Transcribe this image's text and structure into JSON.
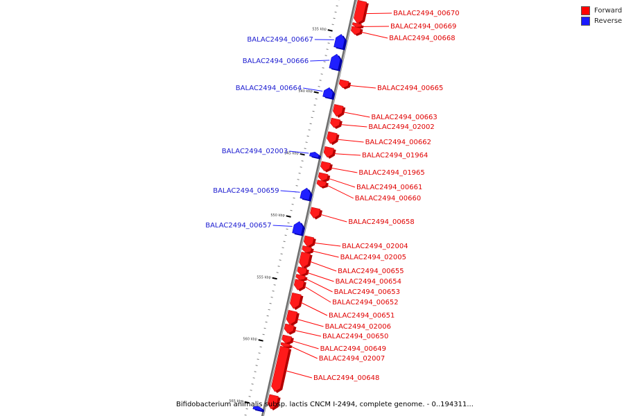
{
  "legend": [
    {
      "label": "Forward",
      "color": "#ff0000"
    },
    {
      "label": "Reverse",
      "color": "#1a1aff"
    }
  ],
  "caption": "Bifidobacterium animalis subsp. lactis CNCM I-2494, complete genome. - 0..194311...",
  "ticks": [
    {
      "label": "535 kbp",
      "pos": 535
    },
    {
      "label": "540 kbp",
      "pos": 540
    },
    {
      "label": "545 kbp",
      "pos": 545
    },
    {
      "label": "550 kbp",
      "pos": 550
    },
    {
      "label": "555 kbp",
      "pos": 555
    },
    {
      "label": "560 kbp",
      "pos": 560
    },
    {
      "label": "565 kbp",
      "pos": 565
    }
  ],
  "features": [
    {
      "name": "BALAC2494_00670",
      "strand": "forward",
      "start": 532.2,
      "end": 534.0
    },
    {
      "name": "BALAC2494_00669",
      "strand": "forward",
      "start": 534.0,
      "end": 534.3
    },
    {
      "name": "BALAC2494_00668",
      "strand": "forward",
      "start": 534.3,
      "end": 534.9
    },
    {
      "name": "BALAC2494_00667",
      "strand": "reverse",
      "start": 535.1,
      "end": 536.2
    },
    {
      "name": "BALAC2494_00666",
      "strand": "reverse",
      "start": 536.7,
      "end": 537.9
    },
    {
      "name": "BALAC2494_00665",
      "strand": "forward",
      "start": 538.6,
      "end": 539.2
    },
    {
      "name": "BALAC2494_00664",
      "strand": "reverse",
      "start": 539.4,
      "end": 540.2
    },
    {
      "name": "BALAC2494_00663",
      "strand": "forward",
      "start": 540.6,
      "end": 541.5
    },
    {
      "name": "BALAC2494_02002",
      "strand": "forward",
      "start": 541.7,
      "end": 542.4
    },
    {
      "name": "BALAC2494_00662",
      "strand": "forward",
      "start": 542.8,
      "end": 543.7
    },
    {
      "name": "BALAC2494_02003",
      "strand": "reverse",
      "start": 544.6,
      "end": 545.0
    },
    {
      "name": "BALAC2494_01964",
      "strand": "forward",
      "start": 544.0,
      "end": 544.8
    },
    {
      "name": "BALAC2494_01965",
      "strand": "forward",
      "start": 545.2,
      "end": 545.9
    },
    {
      "name": "BALAC2494_00661",
      "strand": "forward",
      "start": 546.1,
      "end": 546.7
    },
    {
      "name": "BALAC2494_00660",
      "strand": "forward",
      "start": 546.7,
      "end": 547.2
    },
    {
      "name": "BALAC2494_00659",
      "strand": "reverse",
      "start": 547.5,
      "end": 548.4
    },
    {
      "name": "BALAC2494_00658",
      "strand": "forward",
      "start": 548.9,
      "end": 549.7
    },
    {
      "name": "BALAC2494_00657",
      "strand": "reverse",
      "start": 550.2,
      "end": 551.2
    },
    {
      "name": "BALAC2494_02004",
      "strand": "forward",
      "start": 551.2,
      "end": 552.0
    },
    {
      "name": "BALAC2494_02005",
      "strand": "forward",
      "start": 552.0,
      "end": 552.5
    },
    {
      "name": "BALAC2494_00655",
      "strand": "forward",
      "start": 552.5,
      "end": 553.7
    },
    {
      "name": "BALAC2494_00654",
      "strand": "forward",
      "start": 553.7,
      "end": 554.3
    },
    {
      "name": "BALAC2494_00653",
      "strand": "forward",
      "start": 554.3,
      "end": 554.7
    },
    {
      "name": "BALAC2494_00652",
      "strand": "forward",
      "start": 554.7,
      "end": 555.5
    },
    {
      "name": "BALAC2494_00651",
      "strand": "forward",
      "start": 555.8,
      "end": 557.0
    },
    {
      "name": "BALAC2494_02006",
      "strand": "forward",
      "start": 557.2,
      "end": 558.3
    },
    {
      "name": "BALAC2494_00650",
      "strand": "forward",
      "start": 558.3,
      "end": 559.0
    },
    {
      "name": "BALAC2494_00649",
      "strand": "forward",
      "start": 559.2,
      "end": 559.8
    },
    {
      "name": "BALAC2494_02007",
      "strand": "forward",
      "start": 559.8,
      "end": 560.1
    },
    {
      "name": "BALAC2494_00648",
      "strand": "forward",
      "start": 560.1,
      "end": 563.7
    },
    {
      "name": "",
      "strand": "forward",
      "start": 564.0,
      "end": 565.1
    },
    {
      "name": "",
      "strand": "reverse",
      "start": 565.1,
      "end": 565.4
    }
  ]
}
